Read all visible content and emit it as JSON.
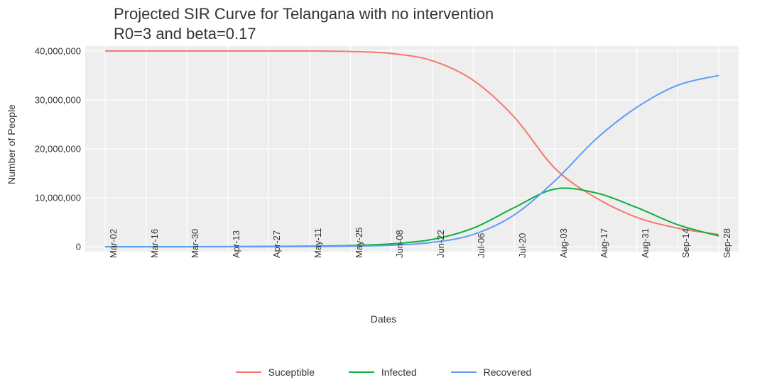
{
  "chart": {
    "type": "line",
    "title_line1": "Projected SIR Curve for Telangana with no intervention",
    "title_line2": "R0=3 and beta=0.17",
    "title_fontsize": 22,
    "xlabel": "Dates",
    "ylabel": "Number of People",
    "label_fontsize": 14,
    "background_color": "#ffffff",
    "panel_color": "#eeeeee",
    "grid_color": "#ffffff",
    "tick_font_color": "#4a4a4a",
    "line_width": 2,
    "y": {
      "min": -1000000,
      "max": 41000000,
      "ticks": [
        0,
        10000000,
        20000000,
        30000000,
        40000000
      ],
      "tick_labels": [
        "0",
        "10,000,000",
        "20,000,000",
        "30,000,000",
        "40,000,000"
      ]
    },
    "x": {
      "categories": [
        "Mar-02",
        "Mar-16",
        "Mar-30",
        "Apr-13",
        "Apr-27",
        "May-11",
        "May-25",
        "Jun-08",
        "Jun-22",
        "Jul-06",
        "Jul-20",
        "Aug-03",
        "Aug-17",
        "Aug-31",
        "Sep-14",
        "Sep-28"
      ],
      "min_index": 0,
      "max_index": 15
    },
    "series": [
      {
        "name": "Suceptible",
        "color": "#f6766d",
        "values": [
          40000000,
          40000000,
          40000000,
          40000000,
          40000000,
          40000000,
          39900000,
          39500000,
          38000000,
          34000000,
          26500000,
          16000000,
          10000000,
          6000000,
          3800000,
          2500000
        ]
      },
      {
        "name": "Infected",
        "color": "#0cb03b",
        "values": [
          5000,
          8000,
          15000,
          30000,
          60000,
          120000,
          250000,
          600000,
          1500000,
          3800000,
          8000000,
          11800000,
          11000000,
          8000000,
          4500000,
          2200000
        ]
      },
      {
        "name": "Recovered",
        "color": "#5f9cf8",
        "values": [
          0,
          1000,
          3000,
          8000,
          20000,
          50000,
          120000,
          300000,
          900000,
          2500000,
          6500000,
          13500000,
          22000000,
          28500000,
          33000000,
          35000000
        ]
      }
    ],
    "legend_position": "bottom"
  }
}
